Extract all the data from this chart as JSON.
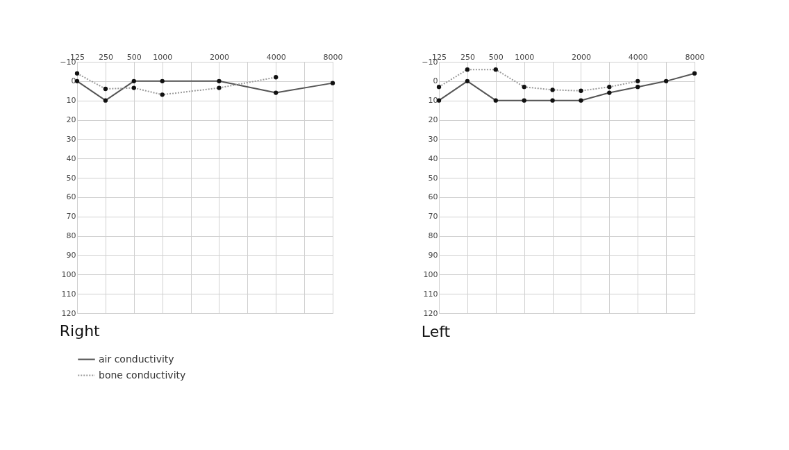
{
  "chart_data": [
    {
      "type": "line",
      "title": "Right",
      "categories": [
        "125",
        "250",
        "500",
        "1000",
        null,
        "2000",
        null,
        "4000",
        null,
        "8000"
      ],
      "ylim": [
        120,
        -10
      ],
      "yticks": [
        -10,
        0,
        10,
        20,
        30,
        40,
        50,
        60,
        70,
        80,
        90,
        100,
        110,
        120
      ],
      "grid": true,
      "marker": "circle",
      "legend": "bottom left",
      "series": [
        {
          "name": "air conductivity",
          "color": "#555555",
          "line_style": "solid",
          "values": [
            0,
            10,
            0,
            0,
            null,
            0,
            null,
            6,
            null,
            1
          ]
        },
        {
          "name": "bone conductivity",
          "color": "#999999",
          "line_style": "dotted",
          "values": [
            -4,
            4,
            3.5,
            7,
            null,
            3.5,
            null,
            -2,
            null,
            null
          ]
        }
      ]
    },
    {
      "type": "line",
      "title": "Left",
      "categories": [
        "125",
        "250",
        "500",
        "1000",
        null,
        "2000",
        null,
        "4000",
        null,
        "8000"
      ],
      "ylim": [
        120,
        -10
      ],
      "yticks": [
        -10,
        0,
        10,
        20,
        30,
        40,
        50,
        60,
        70,
        80,
        90,
        100,
        110,
        120
      ],
      "grid": true,
      "marker": "circle",
      "series": [
        {
          "color": "#555555",
          "line_style": "solid",
          "values": [
            10,
            0,
            10,
            10,
            10,
            10,
            6,
            3,
            0,
            -4
          ]
        },
        {
          "color": "#999999",
          "line_style": "dotted",
          "values": [
            3,
            -6,
            -6,
            3,
            4.5,
            5,
            3,
            0,
            null,
            null
          ]
        }
      ]
    }
  ]
}
